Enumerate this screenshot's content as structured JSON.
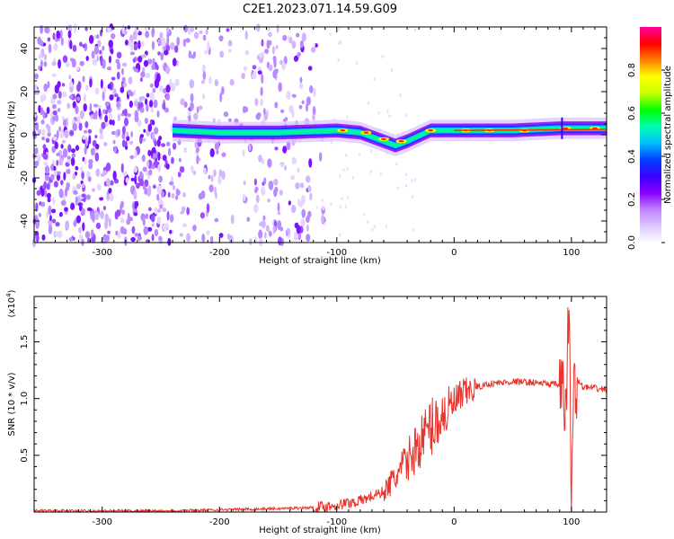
{
  "title": "C2E1.2023.071.14.59.G09",
  "colors": {
    "snr_line": "#e8342c",
    "axis": "#000000",
    "colormap": [
      "#ffffff",
      "#ddc8ff",
      "#c080ff",
      "#8a00ff",
      "#3b00ff",
      "#0040ff",
      "#00c0ff",
      "#00ffb0",
      "#00ff00",
      "#c8ff00",
      "#ffff00",
      "#ff8000",
      "#ff0000",
      "#ff00a0"
    ]
  },
  "chart_data": [
    {
      "type": "heatmap",
      "xlabel": "Height of straight line (km)",
      "ylabel": "Frequency (Hz)",
      "xlim": [
        -358,
        130
      ],
      "ylim": [
        -50,
        50
      ],
      "xticks": [
        -300,
        -200,
        -100,
        0,
        100
      ],
      "yticks": [
        -40,
        -20,
        0,
        20,
        40
      ],
      "colorbar": {
        "label": "Normalized spectral amplitude",
        "range": [
          0.0,
          1.0
        ],
        "ticks": [
          "0.0",
          "0.2",
          "0.4",
          "0.6",
          "0.8"
        ],
        "tick_values": [
          0.0,
          0.2,
          0.4,
          0.6,
          0.8
        ]
      },
      "ridge": {
        "x": [
          -240,
          -200,
          -150,
          -100,
          -80,
          -60,
          -50,
          -40,
          -20,
          0,
          50,
          90,
          100,
          130
        ],
        "y": [
          2,
          1,
          1,
          2,
          1,
          -3,
          -5,
          -3,
          2,
          2,
          2,
          3,
          3,
          3
        ]
      },
      "grid": false
    },
    {
      "type": "line",
      "xlabel": "Height of straight line (km)",
      "ylabel": "SNR (10 * v/v)",
      "y_multiplier": "(x10",
      "y_multiplier_exp": "4",
      "y_multiplier_close": ")",
      "xlim": [
        -358,
        130
      ],
      "ylim": [
        0,
        1.9
      ],
      "xticks": [
        -300,
        -200,
        -100,
        0,
        100
      ],
      "yticks": [
        0.5,
        1.0,
        1.5
      ],
      "series": [
        {
          "x": [
            -358,
            -300,
            -250,
            -200,
            -150,
            -120,
            -100,
            -80,
            -60,
            -50,
            -40,
            -30,
            -20,
            -10,
            0,
            10,
            20,
            30,
            50,
            70,
            90,
            95,
            98,
            100,
            102,
            110,
            130
          ],
          "y": [
            0.01,
            0.01,
            0.01,
            0.02,
            0.03,
            0.04,
            0.06,
            0.1,
            0.18,
            0.3,
            0.45,
            0.6,
            0.75,
            0.85,
            0.95,
            1.05,
            1.1,
            1.13,
            1.15,
            1.14,
            1.12,
            0.9,
            1.8,
            0.05,
            1.2,
            1.1,
            1.08
          ]
        }
      ],
      "grid": false
    }
  ]
}
